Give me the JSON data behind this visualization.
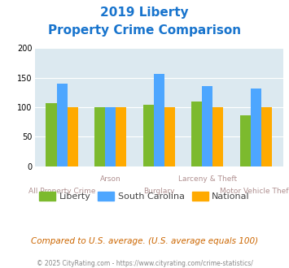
{
  "title_line1": "2019 Liberty",
  "title_line2": "Property Crime Comparison",
  "title_color": "#1874cd",
  "liberty_values": [
    107,
    100,
    104,
    110,
    86
  ],
  "sc_values": [
    140,
    100,
    157,
    136,
    131
  ],
  "national_values": [
    100,
    100,
    100,
    100,
    100
  ],
  "liberty_color": "#7cba2e",
  "sc_color": "#4da6ff",
  "national_color": "#ffaa00",
  "bg_color": "#dce9f0",
  "ylim": [
    0,
    200
  ],
  "yticks": [
    0,
    50,
    100,
    150,
    200
  ],
  "legend_labels": [
    "Liberty",
    "South Carolina",
    "National"
  ],
  "top_labels": [
    "",
    "Arson",
    "",
    "Larceny & Theft",
    ""
  ],
  "bottom_labels": [
    "All Property Crime",
    "",
    "Burglary",
    "",
    "Motor Vehicle Theft"
  ],
  "footer_text": "Compared to U.S. average. (U.S. average equals 100)",
  "copyright_text": "© 2025 CityRating.com - https://www.cityrating.com/crime-statistics/",
  "footer_color": "#cc6600",
  "copyright_color": "#888888",
  "label_color": "#b09090"
}
